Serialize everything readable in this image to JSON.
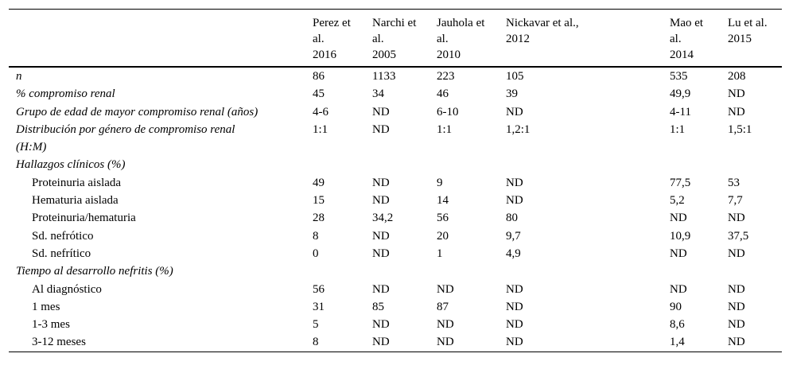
{
  "page": {
    "background_color": "#ffffff",
    "text_color": "#000000",
    "rule_color": "#000000"
  },
  "table": {
    "column_headers": [
      "Perez et\nal.\n2016",
      "Narchi et\nal.\n2005",
      "Jauhola et\nal.\n2010",
      "Nickavar et al.,\n2012",
      "Mao et\nal.\n2014",
      "Lu et al.\n2015"
    ],
    "rows": [
      {
        "label": "n",
        "style": "italic",
        "indent": false,
        "values": [
          "86",
          "1133",
          "223",
          "105",
          "535",
          "208"
        ]
      },
      {
        "label": "% compromiso renal",
        "style": "italic",
        "indent": false,
        "values": [
          "45",
          "34",
          "46",
          "39",
          "49,9",
          "ND"
        ]
      },
      {
        "label": "Grupo de edad de mayor compromiso renal (años)",
        "style": "italic",
        "indent": false,
        "values": [
          "4-6",
          "ND",
          "6-10",
          "ND",
          "4-11",
          "ND"
        ]
      },
      {
        "label": "Distribución por género de compromiso renal\n(H:M)",
        "style": "italic",
        "indent": false,
        "values": [
          "1:1",
          "ND",
          "1:1",
          "1,2:1",
          "1:1",
          "1,5:1"
        ]
      },
      {
        "label": "Hallazgos clínicos (%)",
        "style": "italic",
        "indent": false,
        "values": [
          "",
          "",
          "",
          "",
          "",
          ""
        ]
      },
      {
        "label": "Proteinuria aislada",
        "style": "regular",
        "indent": true,
        "values": [
          "49",
          "ND",
          "9",
          "ND",
          "77,5",
          "53"
        ]
      },
      {
        "label": "Hematuria aislada",
        "style": "regular",
        "indent": true,
        "values": [
          "15",
          "ND",
          "14",
          "ND",
          "5,2",
          "7,7"
        ]
      },
      {
        "label": "Proteinuria/hematuria",
        "style": "regular",
        "indent": true,
        "values": [
          "28",
          "34,2",
          "56",
          "80",
          "ND",
          "ND"
        ]
      },
      {
        "label": "Sd. nefrótico",
        "style": "regular",
        "indent": true,
        "values": [
          "8",
          "ND",
          "20",
          "9,7",
          "10,9",
          "37,5"
        ]
      },
      {
        "label": "Sd. nefrítico",
        "style": "regular",
        "indent": true,
        "values": [
          "0",
          "ND",
          "1",
          "4,9",
          "ND",
          "ND"
        ]
      },
      {
        "label": "Tiempo al desarrollo nefritis (%)",
        "style": "italic",
        "indent": false,
        "values": [
          "",
          "",
          "",
          "",
          "",
          ""
        ]
      },
      {
        "label": "Al diagnóstico",
        "style": "regular",
        "indent": true,
        "values": [
          "56",
          "ND",
          "ND",
          "ND",
          "ND",
          "ND"
        ]
      },
      {
        "label": "1 mes",
        "style": "regular",
        "indent": true,
        "values": [
          "31",
          "85",
          "87",
          "ND",
          "90",
          "ND"
        ]
      },
      {
        "label": "1-3 mes",
        "style": "regular",
        "indent": true,
        "values": [
          "5",
          "ND",
          "ND",
          "ND",
          "8,6",
          "ND"
        ]
      },
      {
        "label": "3-12 meses",
        "style": "regular",
        "indent": true,
        "values": [
          "8",
          "ND",
          "ND",
          "ND",
          "1,4",
          "ND"
        ]
      }
    ]
  }
}
